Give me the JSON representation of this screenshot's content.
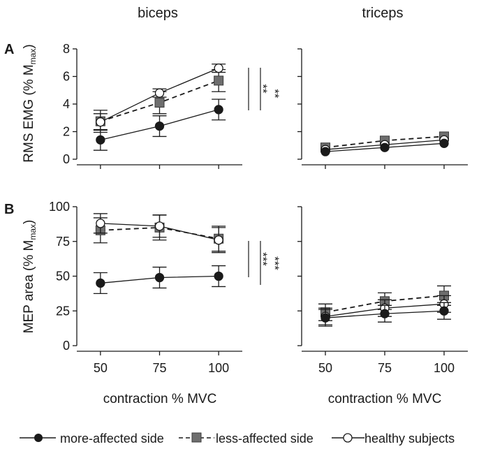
{
  "colors": {
    "axis": "#1a1a1a",
    "more_affected": "#1a1a1a",
    "less_affected": "#6e6e6e",
    "healthy_fill": "#ffffff"
  },
  "columns": {
    "left": "biceps",
    "right": "triceps"
  },
  "panel_letters": {
    "a": "A",
    "b": "B"
  },
  "xlabel": "contraction % MVC",
  "ylabels": {
    "a": {
      "main": "RMS EMG (% M",
      "sub": "max",
      "close": ")"
    },
    "b": {
      "main": "MEP area (% M",
      "sub": "max",
      "close": ")"
    }
  },
  "legend": {
    "more_affected": "more-affected side",
    "less_affected": "less-affected side",
    "healthy": "healthy subjects"
  },
  "chart_data": [
    {
      "id": "A-biceps",
      "type": "line",
      "panel": "A",
      "muscle": "biceps",
      "x": [
        50,
        75,
        100
      ],
      "xlim": [
        40,
        110
      ],
      "ylim": [
        0,
        8
      ],
      "yticks": [
        0,
        2,
        4,
        6,
        8
      ],
      "yticklabels": [
        "0",
        "2",
        "4",
        "6",
        "8"
      ],
      "xticklabels": [],
      "show_yticklabels": true,
      "significance": [
        "**",
        "**"
      ],
      "series": [
        {
          "name": "more-affected side",
          "values": [
            1.4,
            2.4,
            3.6
          ],
          "errors": [
            0.75,
            0.75,
            0.75
          ]
        },
        {
          "name": "less-affected side",
          "values": [
            2.75,
            4.1,
            5.7
          ],
          "errors": [
            0.8,
            0.8,
            0.8
          ]
        },
        {
          "name": "healthy subjects",
          "values": [
            2.7,
            4.8,
            6.6
          ],
          "errors": [
            0.6,
            0.3,
            0.3
          ]
        }
      ]
    },
    {
      "id": "A-triceps",
      "type": "line",
      "panel": "A",
      "muscle": "triceps",
      "x": [
        50,
        75,
        100
      ],
      "xlim": [
        40,
        110
      ],
      "ylim": [
        0,
        8
      ],
      "yticks": [
        0,
        2,
        4,
        6,
        8
      ],
      "yticklabels": [],
      "xticklabels": [],
      "show_yticklabels": false,
      "series": [
        {
          "name": "more-affected side",
          "values": [
            0.55,
            0.85,
            1.15
          ],
          "errors": [
            0,
            0,
            0
          ]
        },
        {
          "name": "less-affected side",
          "values": [
            0.85,
            1.35,
            1.65
          ],
          "errors": [
            0,
            0,
            0
          ]
        },
        {
          "name": "healthy subjects",
          "values": [
            0.7,
            1.05,
            1.4
          ],
          "errors": [
            0,
            0,
            0
          ]
        }
      ]
    },
    {
      "id": "B-biceps",
      "type": "line",
      "panel": "B",
      "muscle": "biceps",
      "x": [
        50,
        75,
        100
      ],
      "xlim": [
        40,
        110
      ],
      "ylim": [
        0,
        100
      ],
      "yticks": [
        0,
        25,
        50,
        75,
        100
      ],
      "yticklabels": [
        "0",
        "25",
        "50",
        "75",
        "100"
      ],
      "xticklabels": [
        "50",
        "75",
        "100"
      ],
      "show_yticklabels": true,
      "significance": [
        "***",
        "***"
      ],
      "series": [
        {
          "name": "more-affected side",
          "values": [
            45,
            49,
            50
          ],
          "errors": [
            7.5,
            7.5,
            7.5
          ]
        },
        {
          "name": "less-affected side",
          "values": [
            83,
            85,
            77
          ],
          "errors": [
            9,
            9,
            9
          ]
        },
        {
          "name": "healthy subjects",
          "values": [
            88,
            86,
            76
          ],
          "errors": [
            7,
            8,
            9
          ]
        }
      ]
    },
    {
      "id": "B-triceps",
      "type": "line",
      "panel": "B",
      "muscle": "triceps",
      "x": [
        50,
        75,
        100
      ],
      "xlim": [
        40,
        110
      ],
      "ylim": [
        0,
        100
      ],
      "yticks": [
        0,
        25,
        50,
        75,
        100
      ],
      "yticklabels": [],
      "xticklabels": [
        "50",
        "75",
        "100"
      ],
      "show_yticklabels": false,
      "series": [
        {
          "name": "more-affected side",
          "values": [
            20,
            23,
            25
          ],
          "errors": [
            6,
            6,
            6
          ]
        },
        {
          "name": "less-affected side",
          "values": [
            24,
            32,
            36
          ],
          "errors": [
            6,
            6,
            7
          ]
        },
        {
          "name": "healthy subjects",
          "values": [
            21,
            27,
            30
          ],
          "errors": [
            6,
            6,
            6
          ]
        }
      ]
    }
  ]
}
